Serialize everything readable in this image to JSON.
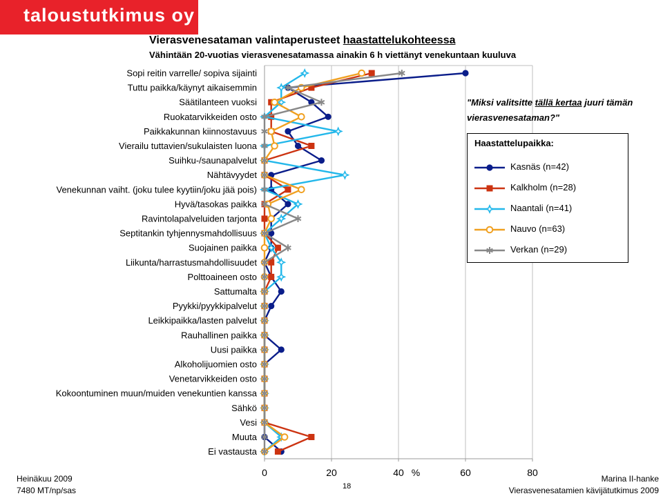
{
  "brand": {
    "logo_text": "taloustutkimus oy"
  },
  "header": {
    "title_plain": "Vierasvenesataman valintaperusteet ",
    "title_underlined": "haastattelukohteessa",
    "subtitle": "Vähintään 20-vuotias vierasvenesatamassa ainakin 6 h viettänyt venekuntaan kuuluva"
  },
  "question": {
    "part1": "\"Miksi valitsitte ",
    "underlined": "tällä kertaa",
    "part2": " juuri tämän vierasvenesataman?\""
  },
  "legend": {
    "title": "Haastattelupaikka:"
  },
  "footer": {
    "left_line1": "Heinäkuu 2009",
    "left_line2": "7480 MT/np/sas",
    "page_number": "18",
    "right_line1": "Marina II-hanke",
    "right_line2": "Vierasvenesatamien kävijätutkimus 2009"
  },
  "chart_data": {
    "type": "line",
    "orientation": "horizontal",
    "xunit": "%",
    "xlim": [
      0,
      80
    ],
    "xticks": [
      0,
      20,
      40,
      60,
      80
    ],
    "grid": true,
    "legend_position": "right",
    "categories": [
      "Sopi reitin varrelle/ sopiva sijainti",
      "Tuttu paikka/käynyt aikaisemmin",
      "Säätilanteen vuoksi",
      "Ruokatarvikkeiden osto",
      "Paikkakunnan kiinnostavuus",
      "Vierailu tuttavien/sukulaisten luona",
      "Suihku-/saunapalvelut",
      "Nähtävyydet",
      "Venekunnan vaiht. (joku tulee kyytiin/joku jää pois)",
      "Hyvä/tasokas paikka",
      "Ravintolapalveluiden tarjonta",
      "Septitankin tyhjennysmahdollisuus",
      "Suojainen paikka",
      "Liikunta/harrastusmahdollisuudet",
      "Polttoaineen osto",
      "Sattumalta",
      "Pyykki/pyykkipalvelut",
      "Leikkipaikka/lasten palvelut",
      "Rauhallinen paikka",
      "Uusi paikka",
      "Alkoholijuomien osto",
      "Venetarvikkeiden osto",
      "Kokoontuminen muun/muiden venekuntien kanssa",
      "Sähkö",
      "Vesi",
      "Muuta",
      "Ei vastausta"
    ],
    "series": [
      {
        "name": "Kasnäs (n=42)",
        "color": "#0a1d8a",
        "marker": "circle-filled",
        "values": [
          60,
          7,
          14,
          19,
          7,
          10,
          17,
          2,
          2,
          7,
          2,
          2,
          2,
          0,
          2,
          5,
          2,
          0,
          0,
          5,
          0,
          0,
          0,
          0,
          0,
          0,
          5
        ]
      },
      {
        "name": "Kalkholm (n=28)",
        "color": "#cc3311",
        "marker": "square-filled",
        "values": [
          32,
          14,
          2,
          2,
          2,
          14,
          0,
          0,
          7,
          0,
          0,
          0,
          4,
          2,
          2,
          0,
          0,
          0,
          0,
          0,
          0,
          0,
          0,
          0,
          0,
          14,
          4
        ]
      },
      {
        "name": "Naantali (n=41)",
        "color": "#22b7ea",
        "marker": "star4-open",
        "values": [
          12,
          5,
          5,
          0,
          22,
          0,
          0,
          24,
          0,
          10,
          5,
          0,
          2,
          5,
          5,
          0,
          0,
          0,
          0,
          0,
          0,
          0,
          0,
          0,
          0,
          5,
          0
        ]
      },
      {
        "name": "Nauvo (n=63)",
        "color": "#f0a020",
        "marker": "circle-open",
        "values": [
          29,
          11,
          3,
          11,
          2,
          3,
          0,
          0,
          11,
          1,
          2,
          0,
          0,
          0,
          0,
          0,
          0,
          0,
          0,
          0,
          0,
          0,
          0,
          0,
          0,
          6,
          0
        ]
      },
      {
        "name": "Verkan (n=29)",
        "color": "#888888",
        "marker": "star6",
        "values": [
          41,
          7,
          17,
          0,
          0,
          0,
          0,
          0,
          0,
          0,
          10,
          0,
          7,
          0,
          0,
          0,
          0,
          0,
          0,
          0,
          0,
          0,
          0,
          0,
          0,
          0,
          0
        ]
      }
    ]
  }
}
